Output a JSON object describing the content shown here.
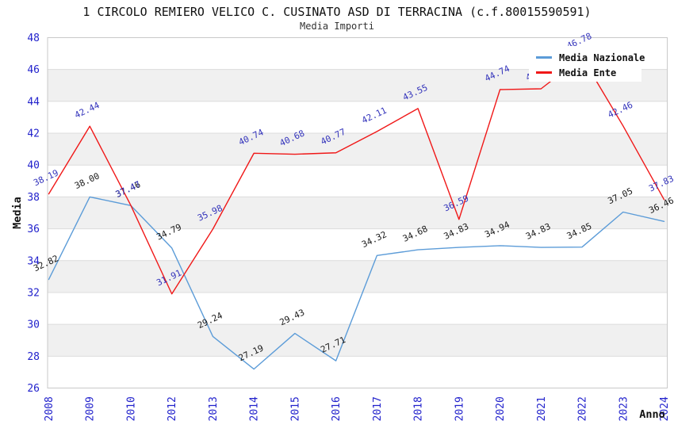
{
  "header": {
    "title": "1 CIRCOLO REMIERO VELICO C. CUSINATO ASD DI TERRACINA (c.f.80015590591)",
    "subtitle": "Media Importi"
  },
  "legend": [
    {
      "label": "Media Nazionale",
      "color": "#5c9cd8"
    },
    {
      "label": "Media Ente",
      "color": "#f01818"
    }
  ],
  "colors": {
    "axis_tick_text": "#2222cc",
    "ente_label_text": "#3333bb",
    "nazionale_label_text": "#1a1a1a",
    "band_gray": "#f0f0f0",
    "gridline": "#dcdcdc",
    "plot_border": "#c9c9c9"
  },
  "chart_data": {
    "type": "line",
    "title": "1 CIRCOLO REMIERO VELICO C. CUSINATO ASD DI TERRACINA (c.f.80015590591)",
    "subtitle": "Media Importi",
    "xlabel": "Anno",
    "ylabel": "Media",
    "ylim": [
      26,
      48
    ],
    "ytick_step": 2,
    "grid": "horizontal",
    "band_fill": "alternating-white-gray",
    "legend_position": "top-right",
    "categories": [
      "2008",
      "2009",
      "2010",
      "2012",
      "2013",
      "2014",
      "2015",
      "2016",
      "2017",
      "2018",
      "2019",
      "2020",
      "2021",
      "2022",
      "2023",
      "2024"
    ],
    "series": [
      {
        "name": "Media Nazionale",
        "color": "#5c9cd8",
        "label_color": "#1a1a1a",
        "values": [
          32.82,
          38.0,
          37.46,
          34.79,
          29.24,
          27.19,
          29.43,
          27.71,
          34.32,
          34.68,
          34.83,
          34.94,
          34.83,
          34.85,
          37.05,
          36.46
        ]
      },
      {
        "name": "Media Ente",
        "color": "#f01818",
        "label_color": "#3333bb",
        "values": [
          38.19,
          42.44,
          37.47,
          31.91,
          35.98,
          40.74,
          40.68,
          40.77,
          42.11,
          43.55,
          36.59,
          44.74,
          44.79,
          46.78,
          42.46,
          37.83
        ]
      }
    ]
  }
}
